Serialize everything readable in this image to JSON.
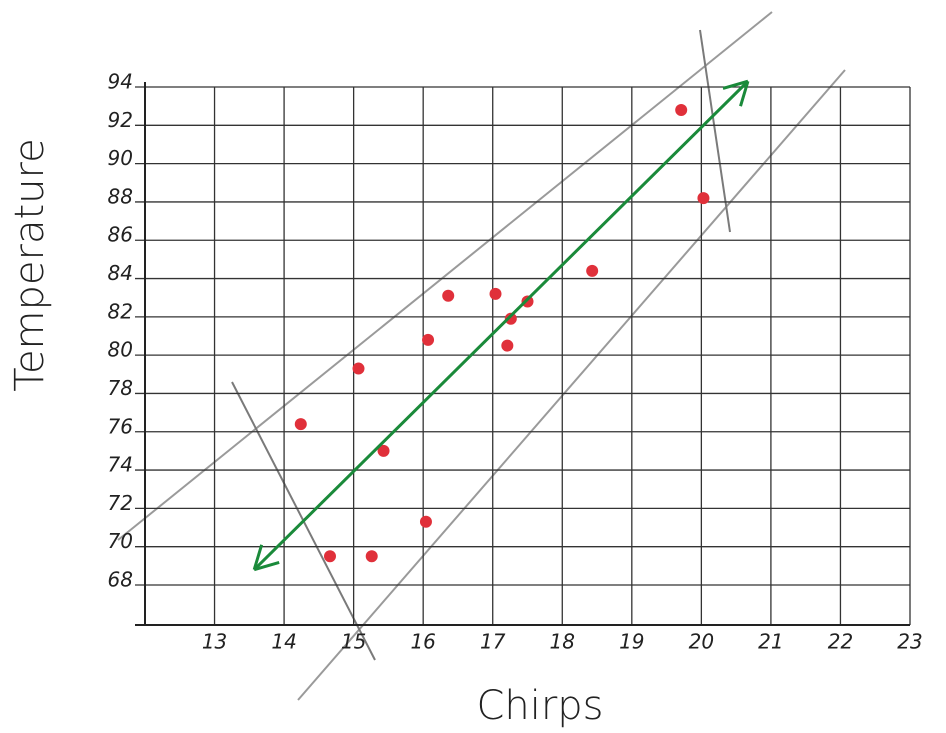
{
  "chart_data": {
    "type": "scatter",
    "x_label": "Chirps",
    "y_label": "Temperature",
    "xlim": [
      12,
      23
    ],
    "ylim": [
      68,
      94
    ],
    "xticks": [
      13,
      14,
      15,
      16,
      17,
      18,
      19,
      20,
      21,
      22,
      23
    ],
    "yticks": [
      68,
      70,
      72,
      74,
      76,
      78,
      80,
      82,
      84,
      86,
      88,
      90,
      92,
      94
    ],
    "grid": true,
    "series": [
      {
        "color": "#e0303a",
        "x": [
          19.71,
          20.03,
          18.43,
          17.5,
          17.04,
          16.36,
          17.26,
          17.21,
          16.07,
          15.07,
          14.24,
          15.43,
          16.04,
          14.66,
          15.26
        ],
        "values": [
          92.8,
          88.2,
          84.4,
          82.8,
          83.2,
          83.1,
          81.9,
          80.5,
          80.8,
          79.3,
          76.4,
          75.0,
          71.3,
          69.5,
          69.5
        ]
      },
      {
        "type": "line",
        "color": "#1a8a3a",
        "x": [
          13.57,
          20.67
        ],
        "values": [
          68.8,
          94.3
        ]
      }
    ]
  }
}
